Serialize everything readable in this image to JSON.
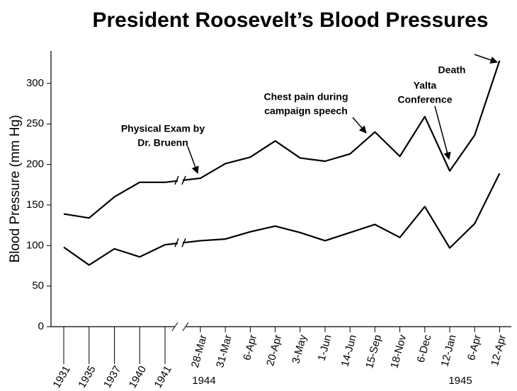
{
  "chart_data": {
    "type": "line",
    "title": "President Roosevelt’s Blood Pressures",
    "y_label": "Blood Pressure (mm Hg)",
    "categories": [
      "1931",
      "1935",
      "1937",
      "1940",
      "1941",
      "28-Mar",
      "31-Mar",
      "6-Apr",
      "20-Apr",
      "3-May",
      "1-Jun",
      "14-Jun",
      "15-Sep",
      "18-Nov",
      "6-Dec",
      "12-Jan",
      "6-Apr",
      "12-Apr"
    ],
    "year_labels": [
      "1944",
      "1945"
    ],
    "series": [
      {
        "color": "#000000",
        "values": [
          139,
          134,
          160,
          178,
          178,
          183,
          201,
          209,
          229,
          208,
          204,
          213,
          240,
          210,
          259,
          192,
          236,
          328
        ]
      },
      {
        "color": "#000000",
        "values": [
          98,
          76,
          96,
          86,
          101,
          106,
          108,
          117,
          124,
          116,
          106,
          116,
          126,
          110,
          148,
          97,
          127,
          189
        ]
      }
    ],
    "annotations": [
      {
        "text": [
          "Physical Exam by",
          "Dr. Bruenn"
        ]
      },
      {
        "text": [
          "Chest pain during",
          "campaign speech"
        ]
      },
      {
        "text": [
          "Yalta",
          "Conference"
        ]
      },
      {
        "text": [
          "Death"
        ]
      }
    ],
    "ylim": [
      0,
      340
    ],
    "yticks": [
      0,
      50,
      100,
      150,
      200,
      250,
      300
    ]
  }
}
